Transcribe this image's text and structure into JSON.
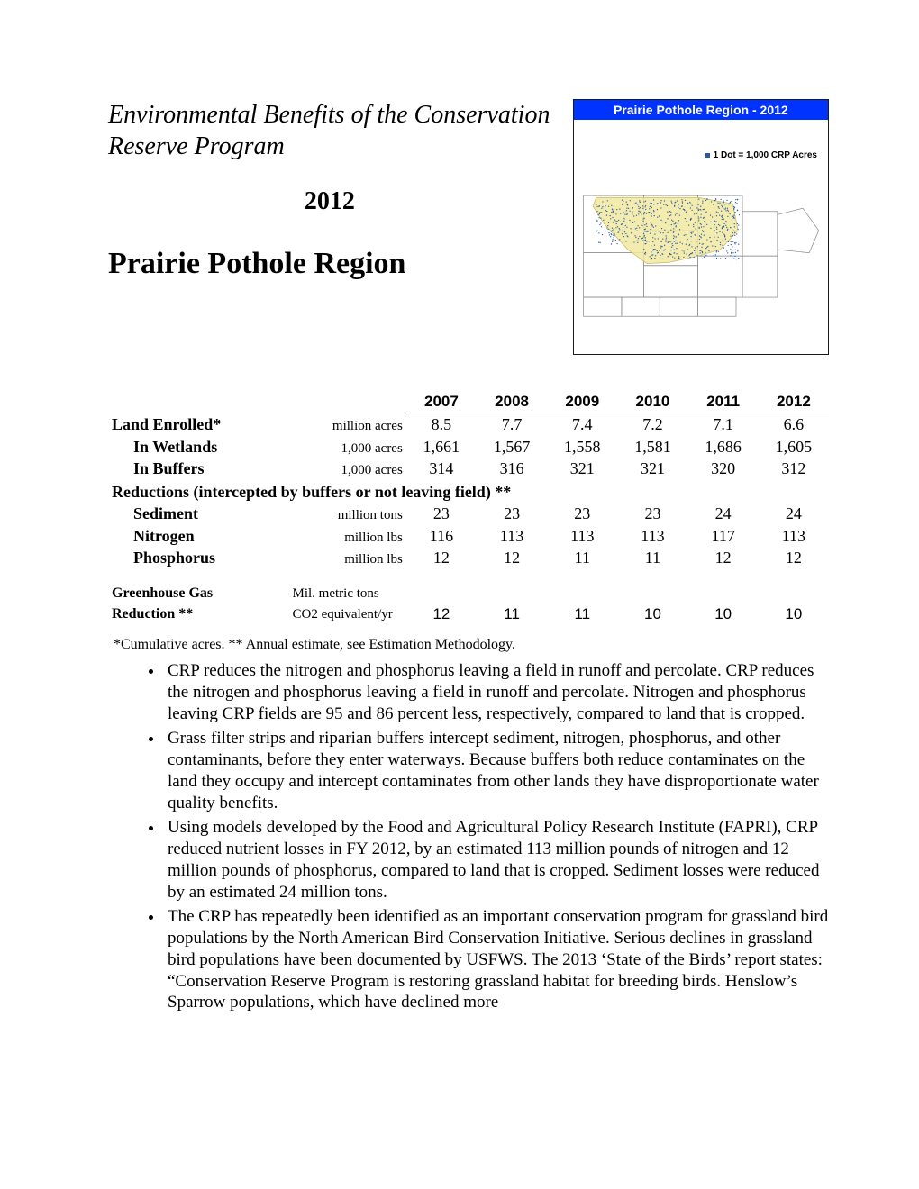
{
  "header": {
    "subtitle": "Environmental Benefits of the Conservation Reserve Program",
    "year": "2012",
    "title": "Prairie Pothole Region"
  },
  "map": {
    "title": "Prairie Pothole Region - 2012",
    "legend": "1 Dot = 1,000 CRP Acres",
    "title_bg": "#0033ff",
    "title_color": "#ffffff",
    "region_fill": "#f1e9a0",
    "dot_color": "#2a5aa0",
    "border_color": "#666666"
  },
  "table": {
    "years": [
      "2007",
      "2008",
      "2009",
      "2010",
      "2011",
      "2012"
    ],
    "rows": [
      {
        "label": "Land Enrolled*",
        "unit": "million acres",
        "values": [
          "8.5",
          "7.7",
          "7.4",
          "7.2",
          "7.1",
          "6.6"
        ],
        "bold": true
      },
      {
        "label": "In Wetlands",
        "unit": "1,000 acres",
        "values": [
          "1,661",
          "1,567",
          "1,558",
          "1,581",
          "1,686",
          "1,605"
        ],
        "indent": true
      },
      {
        "label": "In Buffers",
        "unit": "1,000 acres",
        "values": [
          "314",
          "316",
          "321",
          "321",
          "320",
          "312"
        ],
        "indent": true
      }
    ],
    "section_label": "Reductions (intercepted by buffers or not leaving field)  **",
    "reduction_rows": [
      {
        "label": "Sediment",
        "unit": "million tons",
        "values": [
          "23",
          "23",
          "23",
          "23",
          "24",
          "24"
        ]
      },
      {
        "label": "Nitrogen",
        "unit": "million lbs",
        "values": [
          "116",
          "113",
          "113",
          "113",
          "117",
          "113"
        ]
      },
      {
        "label": "Phosphorus",
        "unit": "million lbs",
        "values": [
          "12",
          "12",
          "11",
          "11",
          "12",
          "12"
        ]
      }
    ],
    "ghg": {
      "label_line1": "Greenhouse Gas",
      "label_line2": "Reduction **",
      "unit_line1": "Mil. metric tons",
      "unit_line2": "CO2 equivalent/yr",
      "values": [
        "12",
        "11",
        "11",
        "10",
        "10",
        "10"
      ]
    }
  },
  "footnote": "*Cumulative acres. ** Annual estimate, see Estimation Methodology.",
  "bullets": [
    "CRP reduces the nitrogen and phosphorus leaving a field in runoff and percolate. CRP reduces the nitrogen and phosphorus leaving a field in runoff and percolate. Nitrogen and phosphorus leaving CRP fields are 95 and 86 percent less, respectively, compared to land that is cropped.",
    "Grass filter strips and riparian buffers intercept sediment, nitrogen, phosphorus, and other contaminants, before they enter waterways. Because buffers both reduce contaminates on the land they occupy and intercept contaminates from other lands they have disproportionate water quality benefits.",
    "Using models developed by the Food and Agricultural Policy Research Institute (FAPRI), CRP reduced nutrient losses in FY 2012, by an estimated 113 million pounds of nitrogen and 12 million pounds of phosphorus, compared to land that is cropped. Sediment losses were reduced by an estimated 24 million tons.",
    "The CRP has repeatedly been identified as an important conservation program for grassland bird populations by the North American Bird Conservation Initiative. Serious declines in grassland bird populations have been documented by USFWS. The 2013 ‘State of the Birds’ report states: “Conservation Reserve Program is restoring grassland habitat for breeding birds. Henslow’s Sparrow populations, which have declined more"
  ]
}
